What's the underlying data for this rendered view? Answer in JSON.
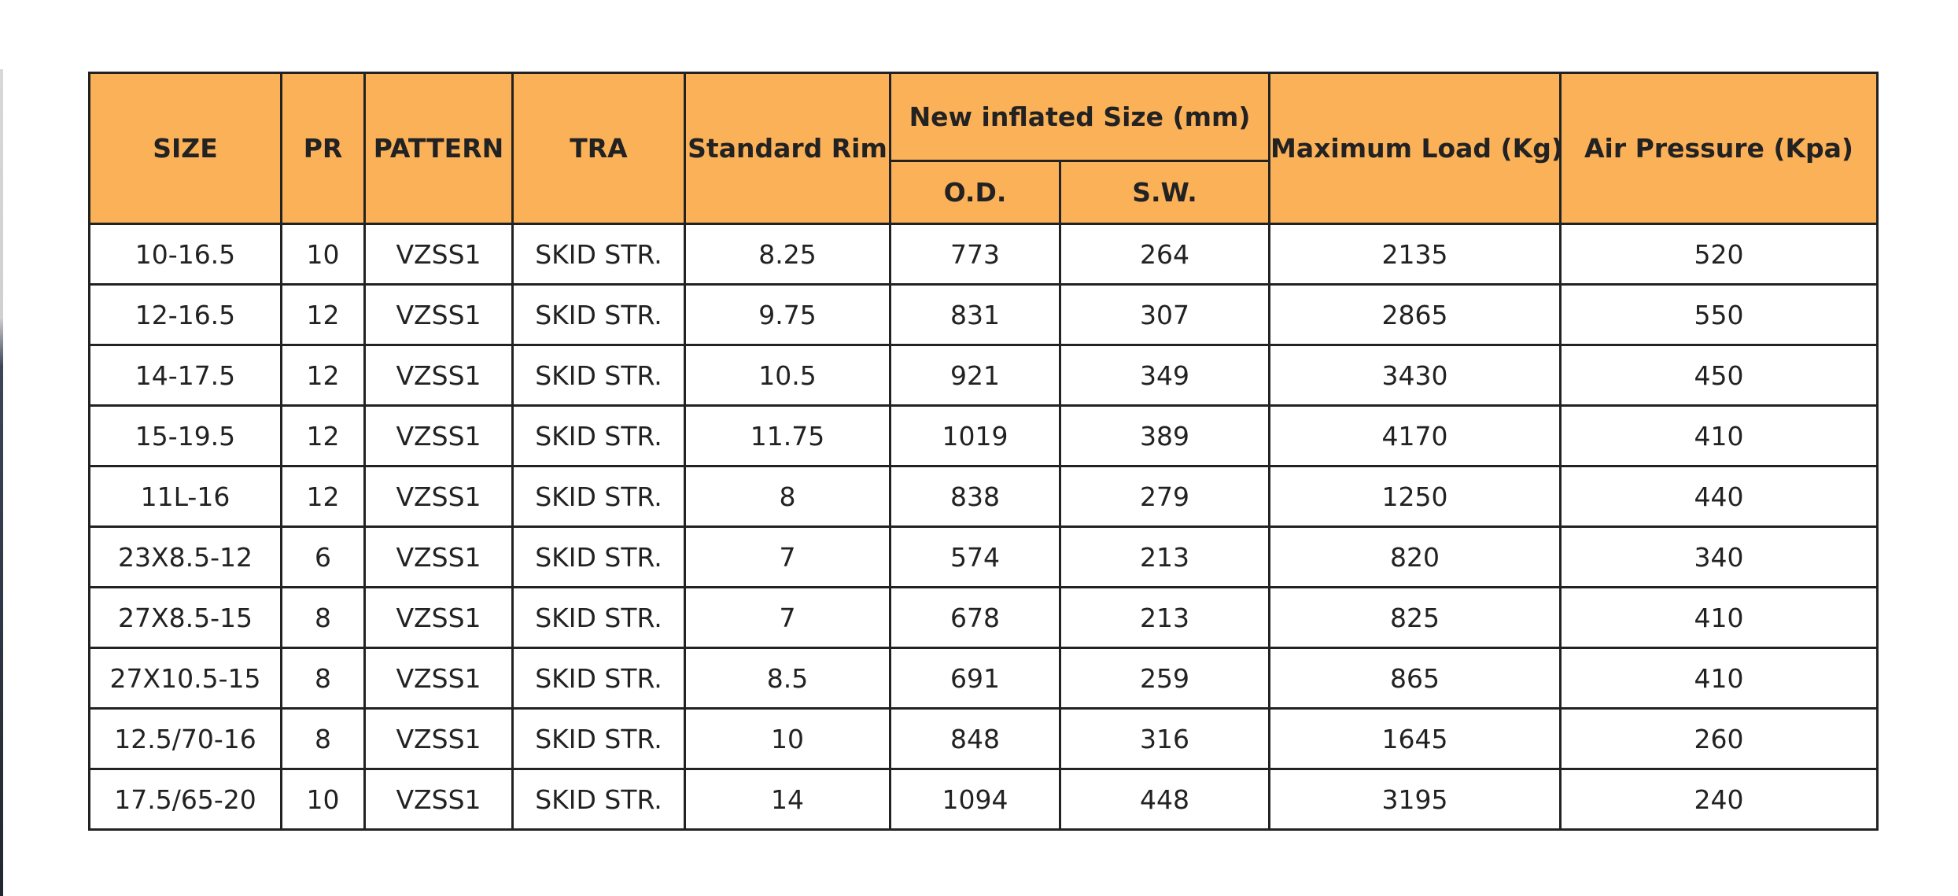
{
  "table": {
    "headers": {
      "size": "SIZE",
      "pr": "PR",
      "pattern": "PATTERN",
      "tra": "TRA",
      "standard_rim": "Standard Rim",
      "new_inflated_size": "New inflated Size (mm)",
      "od": "O.D.",
      "sw": "S.W.",
      "maximum_load": "Maximum Load (Kg)",
      "air_pressure": "Air Pressure (Kpa)"
    },
    "rows": [
      [
        "10-16.5",
        "10",
        "VZSS1",
        "SKID STR.",
        "8.25",
        "773",
        "264",
        "2135",
        "520"
      ],
      [
        "12-16.5",
        "12",
        "VZSS1",
        "SKID STR.",
        "9.75",
        "831",
        "307",
        "2865",
        "550"
      ],
      [
        "14-17.5",
        "12",
        "VZSS1",
        "SKID STR.",
        "10.5",
        "921",
        "349",
        "3430",
        "450"
      ],
      [
        "15-19.5",
        "12",
        "VZSS1",
        "SKID STR.",
        "11.75",
        "1019",
        "389",
        "4170",
        "410"
      ],
      [
        "11L-16",
        "12",
        "VZSS1",
        "SKID STR.",
        "8",
        "838",
        "279",
        "1250",
        "440"
      ],
      [
        "23X8.5-12",
        "6",
        "VZSS1",
        "SKID STR.",
        "7",
        "574",
        "213",
        "820",
        "340"
      ],
      [
        "27X8.5-15",
        "8",
        "VZSS1",
        "SKID STR.",
        "7",
        "678",
        "213",
        "825",
        "410"
      ],
      [
        "27X10.5-15",
        "8",
        "VZSS1",
        "SKID STR.",
        "8.5",
        "691",
        "259",
        "865",
        "410"
      ],
      [
        "12.5/70-16",
        "8",
        "VZSS1",
        "SKID STR.",
        "10",
        "848",
        "316",
        "1645",
        "260"
      ],
      [
        "17.5/65-20",
        "10",
        "VZSS1",
        "SKID STR.",
        "14",
        "1094",
        "448",
        "3195",
        "240"
      ]
    ]
  }
}
